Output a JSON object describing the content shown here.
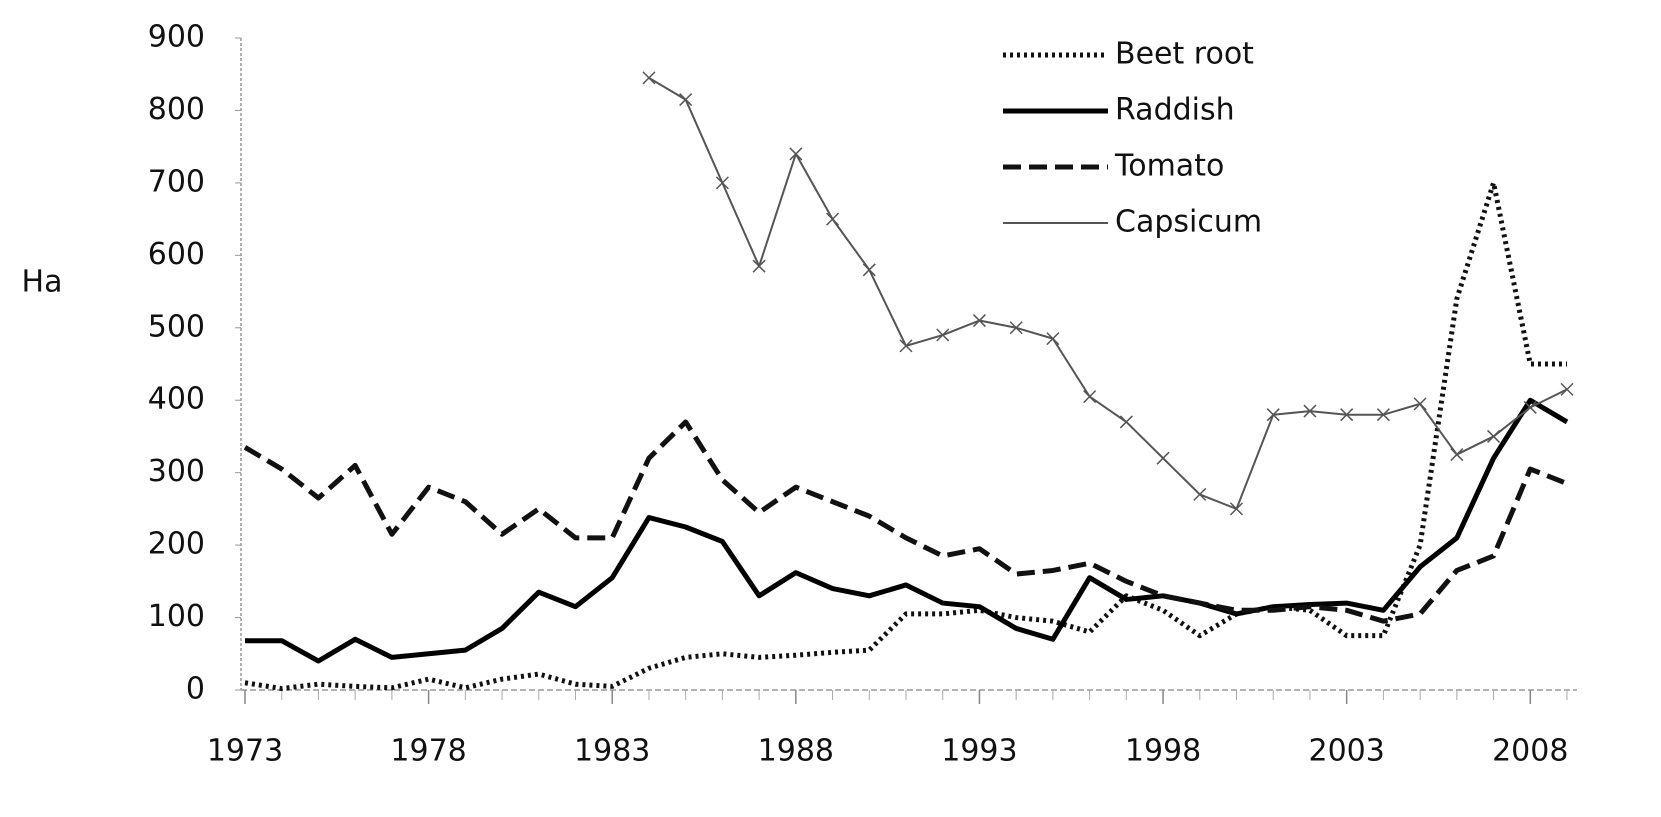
{
  "chart_data": {
    "type": "line",
    "y_label": "Ha",
    "x": [
      1973,
      1974,
      1975,
      1976,
      1977,
      1978,
      1979,
      1980,
      1981,
      1982,
      1983,
      1984,
      1985,
      1986,
      1987,
      1988,
      1989,
      1990,
      1991,
      1992,
      1993,
      1994,
      1995,
      1996,
      1997,
      1998,
      1999,
      2000,
      2001,
      2002,
      2003,
      2004,
      2005,
      2006,
      2007,
      2008,
      2009
    ],
    "xlim": [
      1973,
      2009
    ],
    "xticks": [
      1973,
      1978,
      1983,
      1988,
      1993,
      1998,
      2003,
      2008
    ],
    "ylim": [
      0,
      900
    ],
    "yticks": [
      0,
      100,
      200,
      300,
      400,
      500,
      600,
      700,
      800,
      900
    ],
    "legend": "top-right",
    "series": [
      {
        "name": "Beet root",
        "color": "#111111",
        "line_style": "dotted",
        "values": [
          10,
          2,
          8,
          5,
          3,
          15,
          3,
          15,
          22,
          8,
          5,
          30,
          45,
          50,
          45,
          48,
          52,
          55,
          105,
          105,
          110,
          100,
          95,
          80,
          130,
          110,
          75,
          105,
          115,
          110,
          75,
          75,
          200,
          540,
          700,
          450,
          450
        ]
      },
      {
        "name": "Raddish",
        "color": "#000000",
        "line_style": "solid",
        "values": [
          68,
          68,
          40,
          70,
          45,
          50,
          55,
          85,
          135,
          115,
          155,
          238,
          225,
          205,
          130,
          162,
          140,
          130,
          145,
          120,
          115,
          85,
          70,
          155,
          125,
          130,
          120,
          105,
          115,
          118,
          120,
          110,
          170,
          210,
          320,
          400,
          370
        ]
      },
      {
        "name": "Tomato",
        "color": "#111111",
        "line_style": "dashed",
        "values": [
          335,
          305,
          265,
          310,
          215,
          280,
          260,
          215,
          250,
          210,
          210,
          320,
          370,
          290,
          245,
          280,
          260,
          240,
          210,
          185,
          195,
          160,
          165,
          175,
          150,
          130,
          120,
          110,
          110,
          115,
          110,
          95,
          105,
          165,
          185,
          305,
          285
        ]
      },
      {
        "name": "Capsicum",
        "color": "#555555",
        "line_style": "thin",
        "marker": "x",
        "values": [
          null,
          null,
          null,
          null,
          null,
          null,
          null,
          null,
          null,
          null,
          null,
          845,
          815,
          700,
          585,
          740,
          650,
          580,
          475,
          490,
          510,
          500,
          485,
          405,
          370,
          320,
          270,
          250,
          380,
          385,
          380,
          380,
          395,
          325,
          350,
          390,
          415
        ]
      }
    ]
  }
}
